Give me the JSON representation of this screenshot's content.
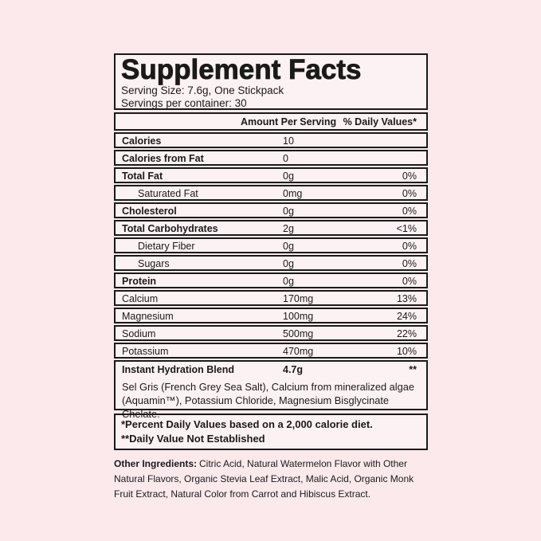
{
  "colors": {
    "background": "#fbe9ec",
    "panel_background": "#fdf2f3",
    "border": "#1a1a1a",
    "text": "#1a1a1a"
  },
  "panel": {
    "title": "Supplement Facts",
    "serving_size": "Serving Size: 7.6g, One Stickpack",
    "servings_per_container": "Servings per container: 30",
    "columns": {
      "amount_header": "Amount Per Serving",
      "daily_value_header": "% Daily Values*"
    },
    "rows": [
      {
        "label": "Calories",
        "amount": "10",
        "dv": ""
      },
      {
        "label": "Calories from Fat",
        "amount": "0",
        "dv": ""
      },
      {
        "label": "Total Fat",
        "amount": "0g",
        "dv": "0%"
      },
      {
        "label": "Saturated Fat",
        "amount": "0mg",
        "dv": "0%"
      },
      {
        "label": "Cholesterol",
        "amount": "0g",
        "dv": "0%"
      },
      {
        "label": "Total Carbohydrates",
        "amount": "2g",
        "dv": "<1%"
      },
      {
        "label": "Dietary Fiber",
        "amount": "0g",
        "dv": "0%"
      },
      {
        "label": "Sugars",
        "amount": "0g",
        "dv": "0%"
      },
      {
        "label": "Protein",
        "amount": "0g",
        "dv": "0%"
      },
      {
        "label": "Calcium",
        "amount": "170mg",
        "dv": "13%"
      },
      {
        "label": "Magnesium",
        "amount": "100mg",
        "dv": "24%"
      },
      {
        "label": "Sodium",
        "amount": "500mg",
        "dv": "22%"
      },
      {
        "label": "Potassium",
        "amount": "470mg",
        "dv": "10%"
      }
    ],
    "blend": {
      "label": "Instant Hydration Blend",
      "amount": "4.7g",
      "dv": "**",
      "description": "Sel Gris (French Grey Sea Salt), Calcium from mineralized algae (Aquamin™), Potassium Chloride, Magnesium Bisglycinate Chelate."
    },
    "footnotes": [
      "*Percent Daily Values based on a 2,000 calorie diet.",
      "**Daily Value Not Established"
    ]
  },
  "other_ingredients": {
    "label": "Other Ingredients:",
    "text": "Citric Acid, Natural Watermelon Flavor with Other Natural Flavors, Organic Stevia Leaf Extract, Malic Acid, Organic Monk Fruit Extract, Natural Color from Carrot and Hibiscus Extract."
  }
}
